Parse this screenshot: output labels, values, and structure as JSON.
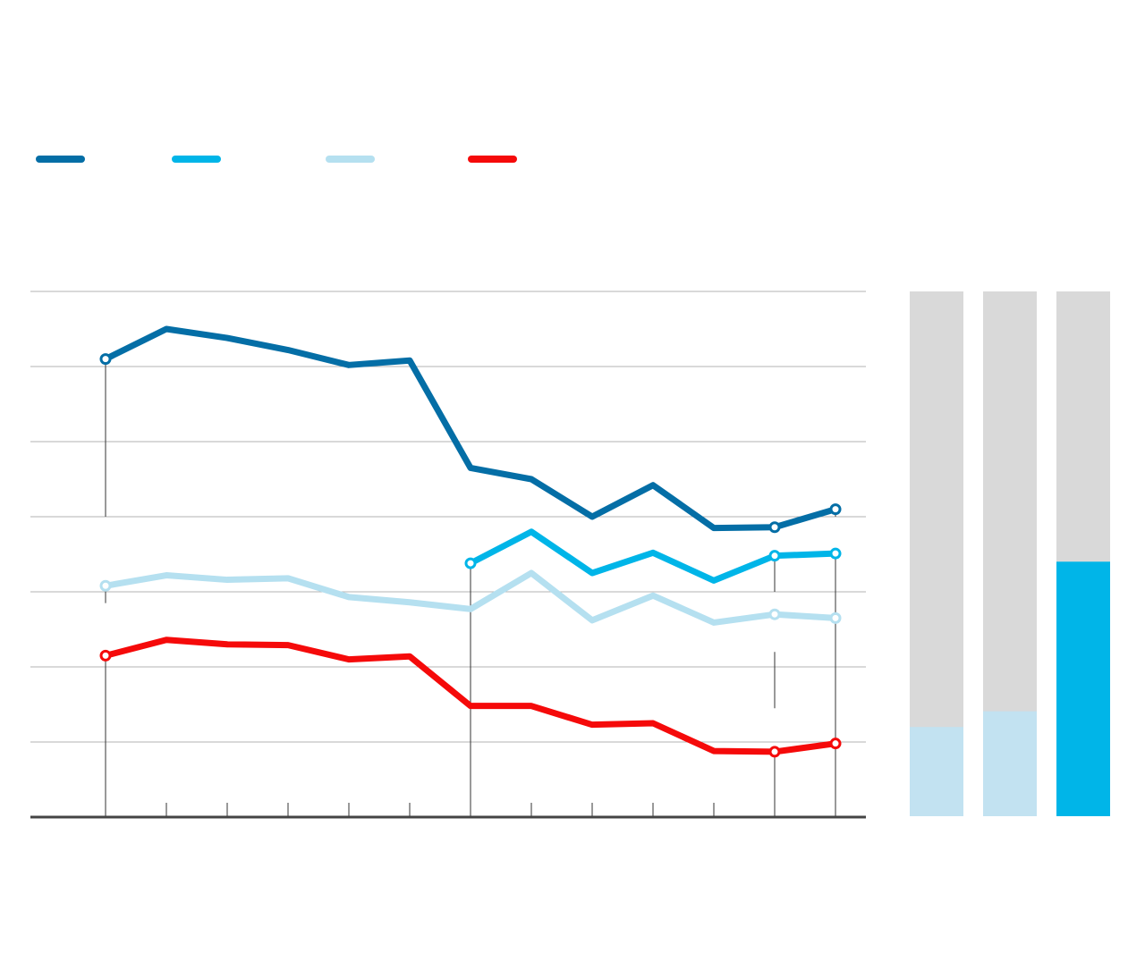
{
  "colors": {
    "series_dark": "#046ea6",
    "series_mid": "#00b5e8",
    "series_light": "#b5e0f0",
    "series_red": "#f50a0a",
    "grid": "#b3b3b3",
    "axis": "#444444",
    "bar_track": "#d9d9d9",
    "bar_fill_light": "#c2e2f1",
    "bar_fill_mid": "#00b5e8",
    "leader": "#333333"
  },
  "chart_data": [
    {
      "type": "line",
      "grid": true,
      "legend_placement": "top-left",
      "ylim": [
        0,
        7
      ],
      "yticks": [
        0,
        1,
        2,
        3,
        4,
        5,
        6,
        7
      ],
      "x": [
        1,
        2,
        3,
        4,
        5,
        6,
        7,
        8,
        9,
        10,
        11,
        12,
        13
      ],
      "series": [
        {
          "color_key": "series_dark",
          "values": [
            6.1,
            6.5,
            6.38,
            6.22,
            6.02,
            6.08,
            4.65,
            4.5,
            4.0,
            4.42,
            3.85,
            3.86,
            4.1
          ],
          "markers": [
            0,
            11,
            12
          ],
          "leader_to": [
            4.0,
            null,
            null,
            null,
            null,
            null,
            null,
            null,
            null,
            null,
            null,
            null,
            4.0
          ]
        },
        {
          "color_key": "series_mid",
          "values": [
            null,
            null,
            null,
            null,
            null,
            null,
            3.38,
            3.8,
            3.25,
            3.52,
            3.15,
            3.48,
            3.51
          ],
          "markers": [
            6,
            11,
            12
          ],
          "leader_to": [
            null,
            null,
            null,
            null,
            null,
            null,
            0,
            null,
            null,
            null,
            null,
            3.0,
            0
          ]
        },
        {
          "color_key": "series_light",
          "values": [
            3.08,
            3.22,
            3.16,
            3.18,
            2.93,
            2.86,
            2.77,
            3.25,
            2.62,
            2.95,
            2.59,
            2.7,
            2.65
          ],
          "markers": [
            0,
            11,
            12
          ],
          "leader_to": [
            2.85,
            null,
            null,
            null,
            null,
            null,
            null,
            null,
            null,
            null,
            null,
            null,
            null
          ]
        },
        {
          "color_key": "series_red",
          "values": [
            2.15,
            2.36,
            2.3,
            2.29,
            2.1,
            2.14,
            1.48,
            1.48,
            1.23,
            1.25,
            0.88,
            0.87,
            0.98
          ],
          "markers": [
            0,
            11,
            12
          ],
          "leader_to": [
            0,
            null,
            null,
            null,
            null,
            null,
            null,
            null,
            null,
            null,
            null,
            null,
            null
          ]
        }
      ],
      "extra_leaders": [
        {
          "x": 12,
          "from": 2.2,
          "to": 1.45
        },
        {
          "x": 13,
          "from": 2.12,
          "to": 1.58
        },
        {
          "x": 12,
          "from": 0.87,
          "to": 0
        },
        {
          "x": 13,
          "from": 0.98,
          "to": 0
        }
      ]
    },
    {
      "type": "bar",
      "stacked_percent": true,
      "values": [
        17,
        20,
        48.5
      ],
      "max": 100,
      "fill_keys": [
        "bar_fill_light",
        "bar_fill_light",
        "bar_fill_mid"
      ]
    }
  ]
}
